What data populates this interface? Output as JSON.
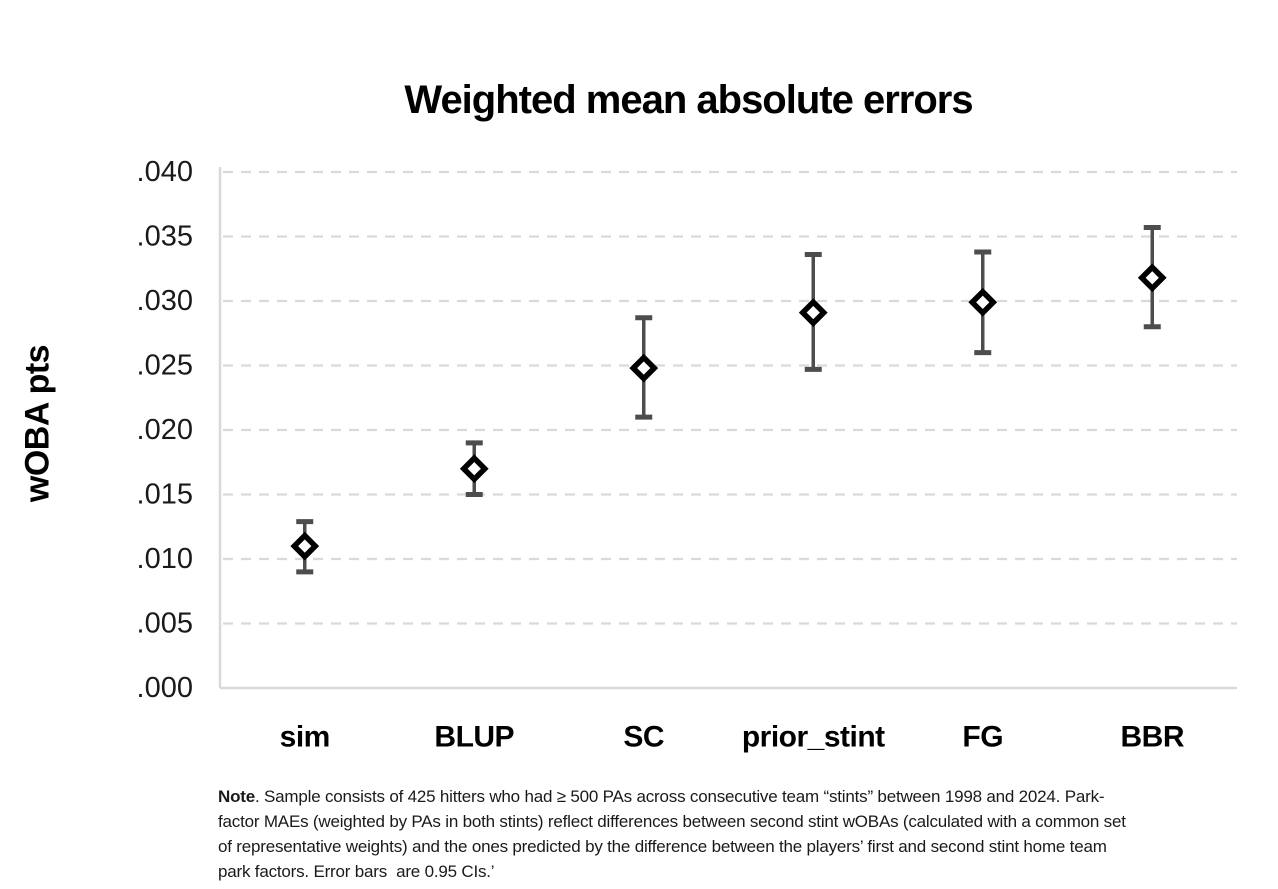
{
  "chart_data": {
    "type": "scatter",
    "title": "Weighted mean absolute errors",
    "ylabel": "wOBA pts",
    "xlabel": "",
    "categories": [
      "sim",
      "BLUP",
      "SC",
      "prior_stint",
      "FG",
      "BBR"
    ],
    "series": [
      {
        "name": "Weighted MAE (wOBA pts)",
        "values": [
          0.011,
          0.017,
          0.0248,
          0.0291,
          0.0299,
          0.0318
        ]
      }
    ],
    "error_low": [
      0.009,
      0.015,
      0.021,
      0.0247,
      0.026,
      0.028
    ],
    "error_high": [
      0.0129,
      0.019,
      0.0287,
      0.0336,
      0.0338,
      0.0357
    ],
    "ylim": [
      0,
      0.04
    ],
    "ytick_step": 0.005,
    "ytick_labels": [
      ".000",
      ".005",
      ".010",
      ".015",
      ".020",
      ".025",
      ".030",
      ".035",
      ".040"
    ],
    "grid": "horizontal-dashed",
    "legend": "none",
    "marker": "open-diamond",
    "error_bar_note": "0.95 CIs",
    "colors": {
      "marker_stroke": "#000000",
      "marker_fill": "#ffffff",
      "error_bar": "#4d4d4d",
      "gridline": "#d9d9d9",
      "axis": "#d9d9d9",
      "text": "#1a1a1a"
    }
  },
  "note": {
    "label": "Note",
    "line1_rest": ". Sample consists of 425 hitters who had ≥ 500 PAs across consecutive team “stints” between 1998 and 2024. Park-",
    "line2": "factor MAEs (weighted by PAs in both stints) reflect differences between second stint wOBAs (calculated with a common set",
    "line3": "of representative weights) and the ones predicted by the difference between the players’ first and second stint home team",
    "line4": "park factors. Error bars  are 0.95 CIs.’"
  }
}
